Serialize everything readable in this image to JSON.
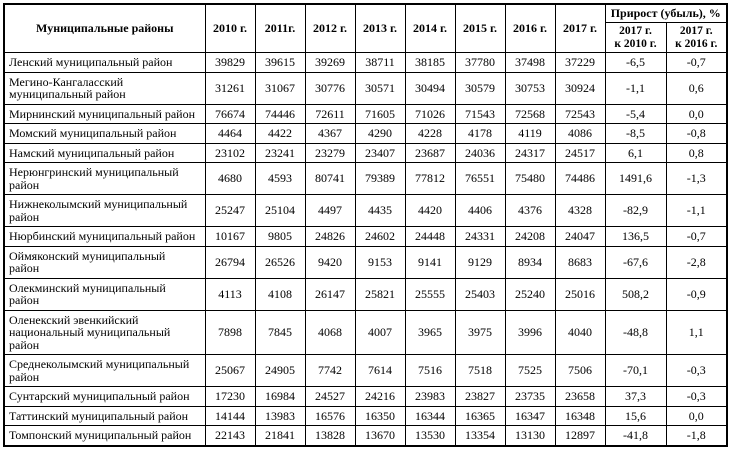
{
  "table": {
    "title_col_header": "Муниципальные районы",
    "year_headers": [
      "2010 г.",
      "2011г.",
      "2012 г.",
      "2013 г.",
      "2014 г.",
      "2015 г.",
      "2016 г.",
      "2017 г."
    ],
    "growth_group_header": "Прирост (убыль), %",
    "growth_sub_headers": [
      "2017 г.\nк 2010 г.",
      "2017 г.\nк 2016 г."
    ],
    "rows": [
      {
        "district": "Ленский муниципальный район",
        "values": [
          "39829",
          "39615",
          "39269",
          "38711",
          "38185",
          "37780",
          "37498",
          "37229"
        ],
        "growth": [
          "-6,5",
          "-0,7"
        ]
      },
      {
        "district": "Мегино-Кангаласский\nмуниципальный район",
        "values": [
          "31261",
          "31067",
          "30776",
          "30571",
          "30494",
          "30579",
          "30753",
          "30924"
        ],
        "growth": [
          "-1,1",
          "0,6"
        ]
      },
      {
        "district": "Мирнинский муниципальный район",
        "values": [
          "76674",
          "74446",
          "72611",
          "71605",
          "71026",
          "71543",
          "72568",
          "72543"
        ],
        "growth": [
          "-5,4",
          "0,0"
        ]
      },
      {
        "district": "Момский муниципальный район",
        "values": [
          "4464",
          "4422",
          "4367",
          "4290",
          "4228",
          "4178",
          "4119",
          "4086"
        ],
        "growth": [
          "-8,5",
          "-0,8"
        ]
      },
      {
        "district": "Намский муниципальный район",
        "values": [
          "23102",
          "23241",
          "23279",
          "23407",
          "23687",
          "24036",
          "24317",
          "24517"
        ],
        "growth": [
          "6,1",
          "0,8"
        ]
      },
      {
        "district": "Нерюнгринский муниципальный\nрайон",
        "values": [
          "4680",
          "4593",
          "80741",
          "79389",
          "77812",
          "76551",
          "75480",
          "74486"
        ],
        "growth": [
          "1491,6",
          "-1,3"
        ]
      },
      {
        "district": "Нижнеколымский муниципальный\nрайон",
        "values": [
          "25247",
          "25104",
          "4497",
          "4435",
          "4420",
          "4406",
          "4376",
          "4328"
        ],
        "growth": [
          "-82,9",
          "-1,1"
        ]
      },
      {
        "district": "Нюрбинский муниципальный район",
        "values": [
          "10167",
          "9805",
          "24826",
          "24602",
          "24448",
          "24331",
          "24208",
          "24047"
        ],
        "growth": [
          "136,5",
          "-0,7"
        ]
      },
      {
        "district": "Оймяконский муниципальный\nрайон",
        "values": [
          "26794",
          "26526",
          "9420",
          "9153",
          "9141",
          "9129",
          "8934",
          "8683"
        ],
        "growth": [
          "-67,6",
          "-2,8"
        ]
      },
      {
        "district": "Олекминский муниципальный\nрайон",
        "values": [
          "4113",
          "4108",
          "26147",
          "25821",
          "25555",
          "25403",
          "25240",
          "25016"
        ],
        "growth": [
          "508,2",
          "-0,9"
        ]
      },
      {
        "district": "Оленекский эвенкийский\nнациональный муниципальный\nрайон",
        "values": [
          "7898",
          "7845",
          "4068",
          "4007",
          "3965",
          "3975",
          "3996",
          "4040"
        ],
        "growth": [
          "-48,8",
          "1,1"
        ]
      },
      {
        "district": "Среднеколымский муниципальный\nрайон",
        "values": [
          "25067",
          "24905",
          "7742",
          "7614",
          "7516",
          "7518",
          "7525",
          "7506"
        ],
        "growth": [
          "-70,1",
          "-0,3"
        ]
      },
      {
        "district": "Сунтарский муниципальный район",
        "values": [
          "17230",
          "16984",
          "24527",
          "24216",
          "23983",
          "23827",
          "23735",
          "23658"
        ],
        "growth": [
          "37,3",
          "-0,3"
        ]
      },
      {
        "district": "Таттинский муниципальный район",
        "values": [
          "14144",
          "13983",
          "16576",
          "16350",
          "16344",
          "16365",
          "16347",
          "16348"
        ],
        "growth": [
          "15,6",
          "0,0"
        ]
      },
      {
        "district": "Томпонский муниципальный район",
        "values": [
          "22143",
          "21841",
          "13828",
          "13670",
          "13530",
          "13354",
          "13130",
          "12897"
        ],
        "growth": [
          "-41,8",
          "-1,8"
        ]
      }
    ]
  },
  "colors": {
    "border": "#000000",
    "text": "#000000",
    "background": "#ffffff"
  }
}
